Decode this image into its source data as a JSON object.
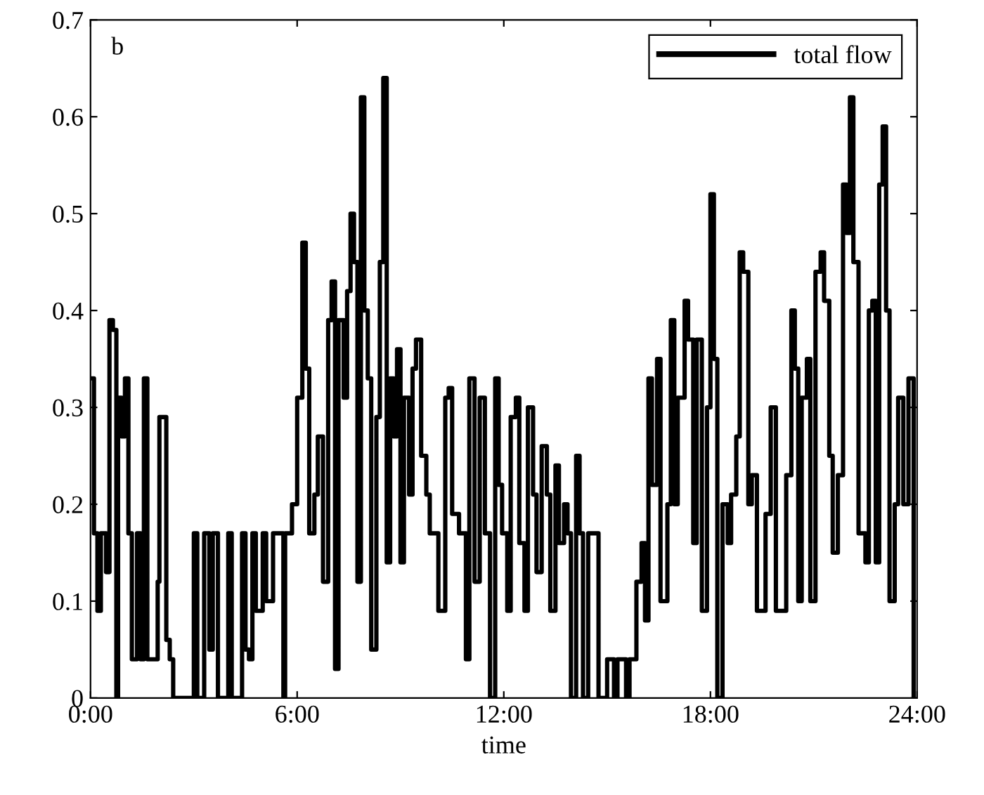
{
  "chart_data": {
    "type": "step",
    "xlabel": "time",
    "annotations": [
      "b"
    ],
    "legend": "top right",
    "grid": false,
    "xlim": [
      0,
      24
    ],
    "xticks": [
      {
        "value": 0,
        "label": "0:00"
      },
      {
        "value": 6,
        "label": "6:00"
      },
      {
        "value": 12,
        "label": "12:00"
      },
      {
        "value": 18,
        "label": "18:00"
      },
      {
        "value": 24,
        "label": "24:00"
      }
    ],
    "ylim": [
      0,
      0.7
    ],
    "yticks": [
      0,
      0.1,
      0.2,
      0.3,
      0.4,
      0.5,
      0.6,
      0.7
    ],
    "series": [
      {
        "name": "total flow",
        "color": "#000000",
        "x": [
          0,
          0.1,
          0.2,
          0.3,
          0.45,
          0.55,
          0.65,
          0.75,
          0.8,
          0.9,
          1.0,
          1.1,
          1.2,
          1.35,
          1.45,
          1.55,
          1.65,
          1.8,
          1.95,
          2.0,
          2.2,
          2.3,
          2.4,
          3.0,
          3.1,
          3.3,
          3.45,
          3.55,
          3.7,
          4.0,
          4.1,
          4.4,
          4.5,
          4.6,
          4.7,
          4.8,
          5.0,
          5.1,
          5.3,
          5.6,
          5.65,
          5.85,
          6.0,
          6.15,
          6.25,
          6.35,
          6.5,
          6.6,
          6.75,
          6.9,
          7.0,
          7.1,
          7.2,
          7.35,
          7.45,
          7.55,
          7.65,
          7.75,
          7.85,
          7.95,
          8.05,
          8.15,
          8.3,
          8.4,
          8.5,
          8.6,
          8.7,
          8.8,
          8.9,
          9.0,
          9.1,
          9.25,
          9.35,
          9.45,
          9.6,
          9.75,
          9.85,
          10.1,
          10.3,
          10.4,
          10.5,
          10.7,
          10.9,
          11.0,
          11.15,
          11.3,
          11.45,
          11.6,
          11.75,
          11.85,
          11.95,
          12.1,
          12.2,
          12.35,
          12.45,
          12.6,
          12.7,
          12.85,
          12.95,
          13.1,
          13.25,
          13.35,
          13.5,
          13.6,
          13.75,
          13.85,
          13.95,
          14.1,
          14.2,
          14.3,
          14.45,
          14.75,
          15.0,
          15.2,
          15.3,
          15.55,
          15.65,
          15.85,
          16.0,
          16.1,
          16.2,
          16.3,
          16.45,
          16.55,
          16.75,
          16.85,
          16.95,
          17.05,
          17.25,
          17.35,
          17.5,
          17.6,
          17.75,
          17.9,
          18.0,
          18.1,
          18.2,
          18.35,
          18.5,
          18.6,
          18.75,
          18.85,
          18.95,
          19.1,
          19.2,
          19.35,
          19.5,
          19.6,
          19.75,
          19.9,
          20.0,
          20.2,
          20.35,
          20.45,
          20.55,
          20.65,
          20.8,
          20.9,
          21.05,
          21.2,
          21.3,
          21.45,
          21.55,
          21.7,
          21.85,
          21.95,
          22.05,
          22.15,
          22.3,
          22.5,
          22.6,
          22.7,
          22.8,
          22.9,
          23.0,
          23.1,
          23.2,
          23.35,
          23.45,
          23.6,
          23.75,
          23.9
        ],
        "values": [
          0.33,
          0.17,
          0.09,
          0.17,
          0.13,
          0.39,
          0.38,
          0.0,
          0.31,
          0.27,
          0.33,
          0.17,
          0.04,
          0.17,
          0.04,
          0.33,
          0.04,
          0.04,
          0.12,
          0.29,
          0.06,
          0.04,
          0.0,
          0.17,
          0.0,
          0.17,
          0.05,
          0.17,
          0.0,
          0.17,
          0.0,
          0.17,
          0.05,
          0.04,
          0.17,
          0.09,
          0.17,
          0.1,
          0.17,
          0.0,
          0.17,
          0.2,
          0.31,
          0.47,
          0.34,
          0.17,
          0.21,
          0.27,
          0.12,
          0.39,
          0.43,
          0.03,
          0.39,
          0.31,
          0.42,
          0.5,
          0.45,
          0.12,
          0.62,
          0.4,
          0.33,
          0.05,
          0.29,
          0.45,
          0.64,
          0.14,
          0.33,
          0.27,
          0.36,
          0.14,
          0.31,
          0.21,
          0.34,
          0.37,
          0.25,
          0.21,
          0.17,
          0.09,
          0.31,
          0.32,
          0.19,
          0.17,
          0.04,
          0.33,
          0.12,
          0.31,
          0.17,
          0.0,
          0.33,
          0.22,
          0.17,
          0.09,
          0.29,
          0.31,
          0.16,
          0.09,
          0.3,
          0.21,
          0.13,
          0.26,
          0.21,
          0.09,
          0.24,
          0.16,
          0.2,
          0.17,
          0.0,
          0.25,
          0.17,
          0.0,
          0.17,
          0.0,
          0.04,
          0.0,
          0.04,
          0.0,
          0.04,
          0.12,
          0.16,
          0.08,
          0.33,
          0.22,
          0.35,
          0.1,
          0.2,
          0.39,
          0.2,
          0.31,
          0.41,
          0.37,
          0.16,
          0.37,
          0.09,
          0.3,
          0.52,
          0.35,
          0.0,
          0.2,
          0.16,
          0.21,
          0.27,
          0.46,
          0.44,
          0.2,
          0.23,
          0.09,
          0.09,
          0.19,
          0.3,
          0.09,
          0.09,
          0.23,
          0.4,
          0.34,
          0.1,
          0.31,
          0.35,
          0.1,
          0.44,
          0.46,
          0.41,
          0.25,
          0.15,
          0.23,
          0.53,
          0.48,
          0.62,
          0.45,
          0.17,
          0.14,
          0.4,
          0.41,
          0.14,
          0.53,
          0.59,
          0.4,
          0.1,
          0.2,
          0.31,
          0.2,
          0.33,
          0.0
        ]
      }
    ]
  }
}
